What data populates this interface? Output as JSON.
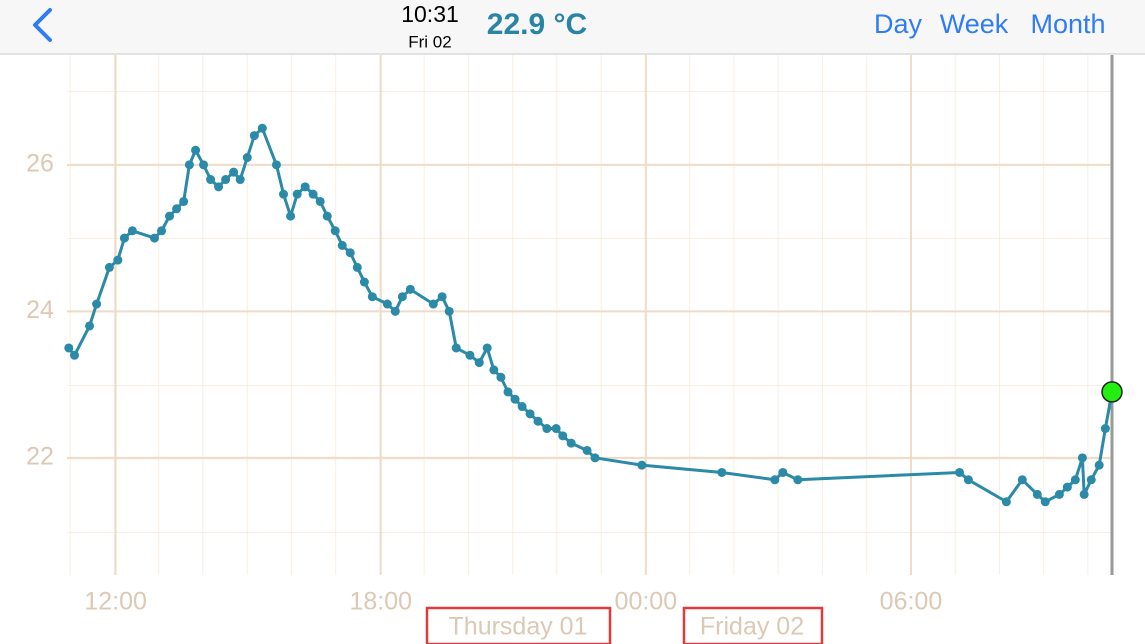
{
  "header": {
    "time": "10:31",
    "date": "Fri 02",
    "temperature": "22.9 °C",
    "buttons": [
      "Day",
      "Week",
      "Month"
    ]
  },
  "chart_data": {
    "type": "line",
    "x": [
      10.94,
      11.07,
      11.41,
      11.57,
      11.86,
      12.05,
      12.2,
      12.38,
      12.88,
      13.04,
      13.22,
      13.38,
      13.54,
      13.67,
      13.81,
      13.99,
      14.15,
      14.33,
      14.49,
      14.67,
      14.82,
      14.98,
      15.14,
      15.32,
      15.64,
      15.8,
      15.96,
      16.11,
      16.29,
      16.47,
      16.63,
      16.79,
      16.97,
      17.13,
      17.31,
      17.47,
      17.63,
      17.81,
      18.15,
      18.33,
      18.49,
      18.67,
      19.19,
      19.39,
      19.55,
      19.71,
      20.02,
      20.23,
      20.41,
      20.56,
      20.72,
      20.88,
      21.04,
      21.2,
      21.38,
      21.56,
      21.76,
      21.97,
      22.12,
      22.31,
      22.67,
      22.85,
      23.91,
      25.72,
      26.92,
      27.1,
      27.44,
      31.1,
      31.3,
      32.16,
      32.52,
      32.86,
      33.04,
      33.36,
      33.54,
      33.72,
      33.88,
      33.92,
      34.08,
      34.26,
      34.4,
      34.55
    ],
    "series": [
      {
        "color": "#2a8aa8",
        "values": [
          23.5,
          23.4,
          23.8,
          24.1,
          24.6,
          24.7,
          25.0,
          25.1,
          25.0,
          25.1,
          25.3,
          25.4,
          25.5,
          26.0,
          26.2,
          26.0,
          25.8,
          25.7,
          25.8,
          25.9,
          25.8,
          26.1,
          26.4,
          26.5,
          26.0,
          25.6,
          25.3,
          25.6,
          25.7,
          25.6,
          25.5,
          25.3,
          25.1,
          24.9,
          24.8,
          24.6,
          24.4,
          24.2,
          24.1,
          24.0,
          24.2,
          24.3,
          24.1,
          24.2,
          24.0,
          23.5,
          23.4,
          23.3,
          23.5,
          23.2,
          23.1,
          22.9,
          22.8,
          22.7,
          22.6,
          22.5,
          22.4,
          22.4,
          22.3,
          22.2,
          22.1,
          22.0,
          21.9,
          21.8,
          21.7,
          21.8,
          21.7,
          21.8,
          21.7,
          21.4,
          21.7,
          21.5,
          21.4,
          21.5,
          21.6,
          21.7,
          22.0,
          21.5,
          21.7,
          21.9,
          22.4,
          22.9
        ]
      }
    ],
    "xlim": [
      10.9,
      34.55
    ],
    "ylim": [
      20.4,
      27.5
    ],
    "xticks": [
      {
        "value": 12,
        "label": "12:00"
      },
      {
        "value": 18,
        "label": "18:00"
      },
      {
        "value": 24,
        "label": "00:00"
      },
      {
        "value": 30,
        "label": "06:00"
      }
    ],
    "yticks": [
      22,
      24,
      26
    ],
    "grid": true,
    "day_labels": [
      "Thursday 01",
      "Friday 02"
    ]
  }
}
